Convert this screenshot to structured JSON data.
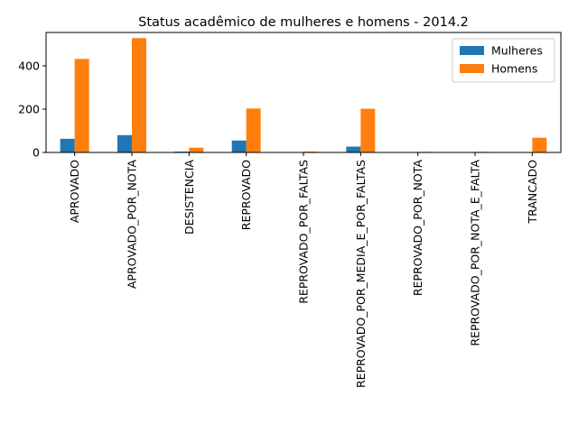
{
  "chart_data": {
    "type": "bar",
    "title": "Status acadêmico de mulheres e homens - 2014.2",
    "xlabel": "",
    "ylabel": "",
    "categories": [
      "APROVADO",
      "APROVADO_POR_NOTA",
      "DESISTENCIA",
      "REPROVADO",
      "REPROVADO_POR_FALTAS",
      "REPROVADO_POR_MEDIA_E_POR_FALTAS",
      "REPROVADO_POR_NOTA",
      "REPROVADO_POR_NOTA_E_FALTA",
      "TRANCADO"
    ],
    "series": [
      {
        "name": "Mulheres",
        "color": "#1f77b4",
        "values": [
          63,
          80,
          4,
          55,
          0,
          27,
          0,
          0,
          0
        ]
      },
      {
        "name": "Homens",
        "color": "#ff7f0e",
        "values": [
          432,
          528,
          22,
          203,
          4,
          202,
          3,
          3,
          68
        ]
      }
    ],
    "ylim": [
      0,
      554
    ],
    "yticks": [
      0,
      200,
      400
    ],
    "grid": false,
    "legend_position": "top-right"
  }
}
